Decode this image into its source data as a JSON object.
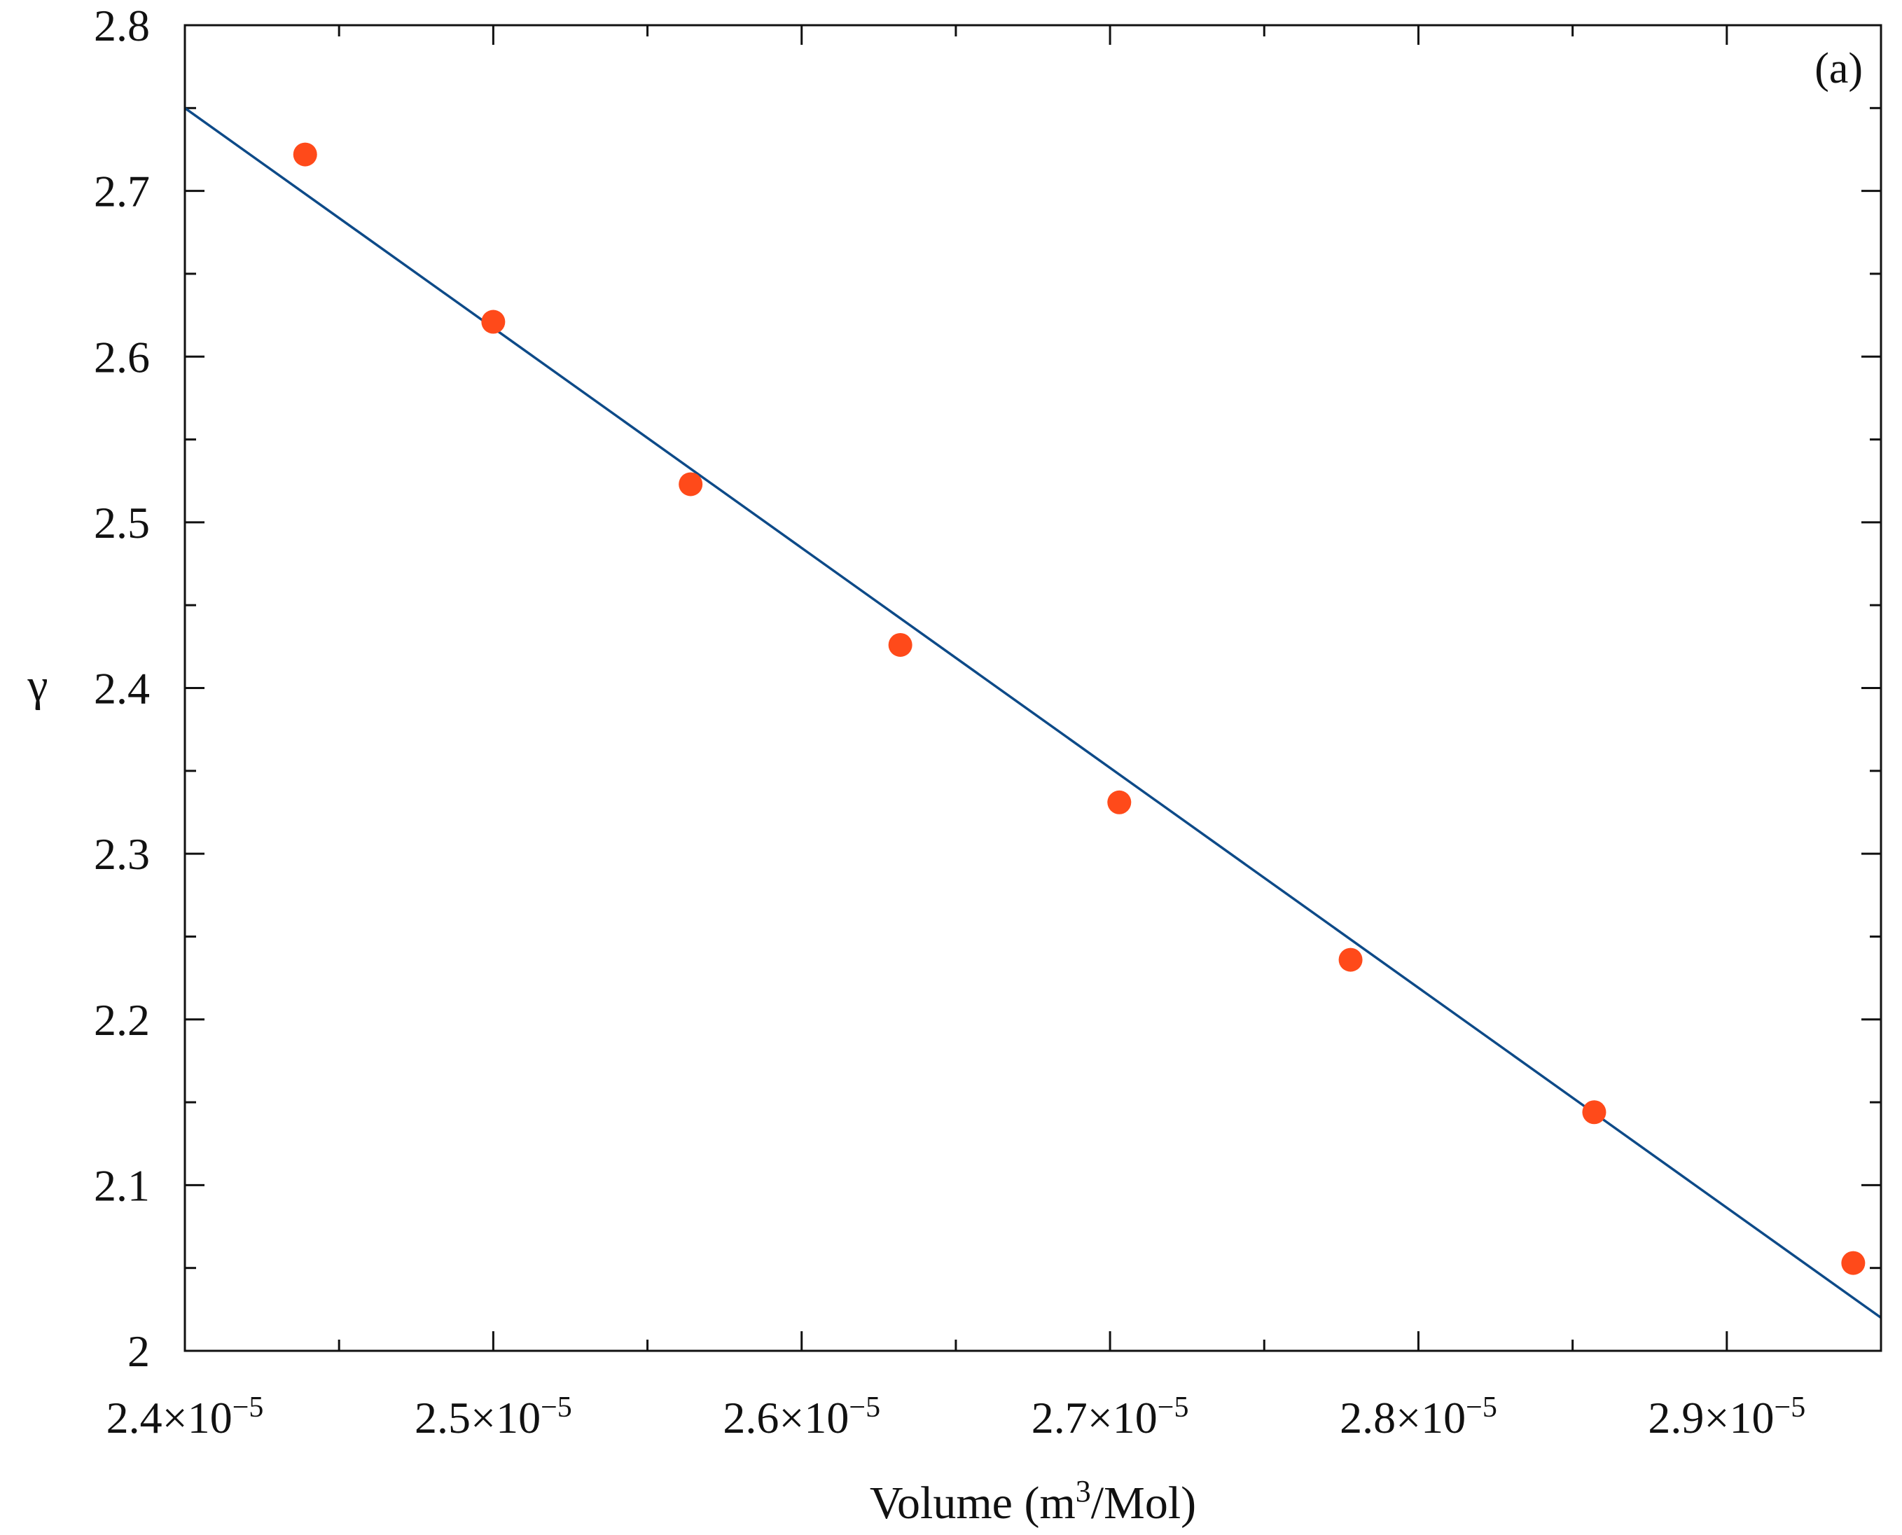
{
  "chart_data": {
    "type": "scatter",
    "panel_label": "(a)",
    "xlabel": {
      "prefix": "Volume (m",
      "superscript": "3",
      "suffix": "/Mol)"
    },
    "ylabel": "γ",
    "xlim": [
      2.4e-05,
      2.95e-05
    ],
    "ylim": [
      2.0,
      2.8
    ],
    "x_ticks": [
      {
        "value": 2.4e-05,
        "mantissa": "2.4",
        "exponent": "−5"
      },
      {
        "value": 2.5e-05,
        "mantissa": "2.5",
        "exponent": "−5"
      },
      {
        "value": 2.6e-05,
        "mantissa": "2.6",
        "exponent": "−5"
      },
      {
        "value": 2.7e-05,
        "mantissa": "2.7",
        "exponent": "−5"
      },
      {
        "value": 2.8e-05,
        "mantissa": "2.8",
        "exponent": "−5"
      },
      {
        "value": 2.9e-05,
        "mantissa": "2.9",
        "exponent": "−5"
      }
    ],
    "x_tick_multiplier": "×10",
    "x_minor_ticks": [
      2.45e-05,
      2.55e-05,
      2.65e-05,
      2.75e-05,
      2.85e-05
    ],
    "y_ticks": [
      {
        "value": 2.0,
        "label": "2"
      },
      {
        "value": 2.1,
        "label": "2.1"
      },
      {
        "value": 2.2,
        "label": "2.2"
      },
      {
        "value": 2.3,
        "label": "2.3"
      },
      {
        "value": 2.4,
        "label": "2.4"
      },
      {
        "value": 2.5,
        "label": "2.5"
      },
      {
        "value": 2.6,
        "label": "2.6"
      },
      {
        "value": 2.7,
        "label": "2.7"
      },
      {
        "value": 2.8,
        "label": "2.8"
      }
    ],
    "y_minor_ticks": [
      2.05,
      2.15,
      2.25,
      2.35,
      2.45,
      2.55,
      2.65,
      2.75
    ],
    "grid": false,
    "legend": "none",
    "series": [
      {
        "kind": "points",
        "color": "#ff4a1a",
        "x": [
          2.439e-05,
          2.5e-05,
          2.564e-05,
          2.632e-05,
          2.703e-05,
          2.778e-05,
          2.857e-05,
          2.941e-05
        ],
        "y": [
          2.722,
          2.621,
          2.523,
          2.426,
          2.331,
          2.236,
          2.144,
          2.053
        ]
      },
      {
        "kind": "line",
        "color": "#0d4a88",
        "x": [
          2.4e-05,
          2.95e-05
        ],
        "y": [
          2.75,
          2.02
        ]
      }
    ]
  }
}
